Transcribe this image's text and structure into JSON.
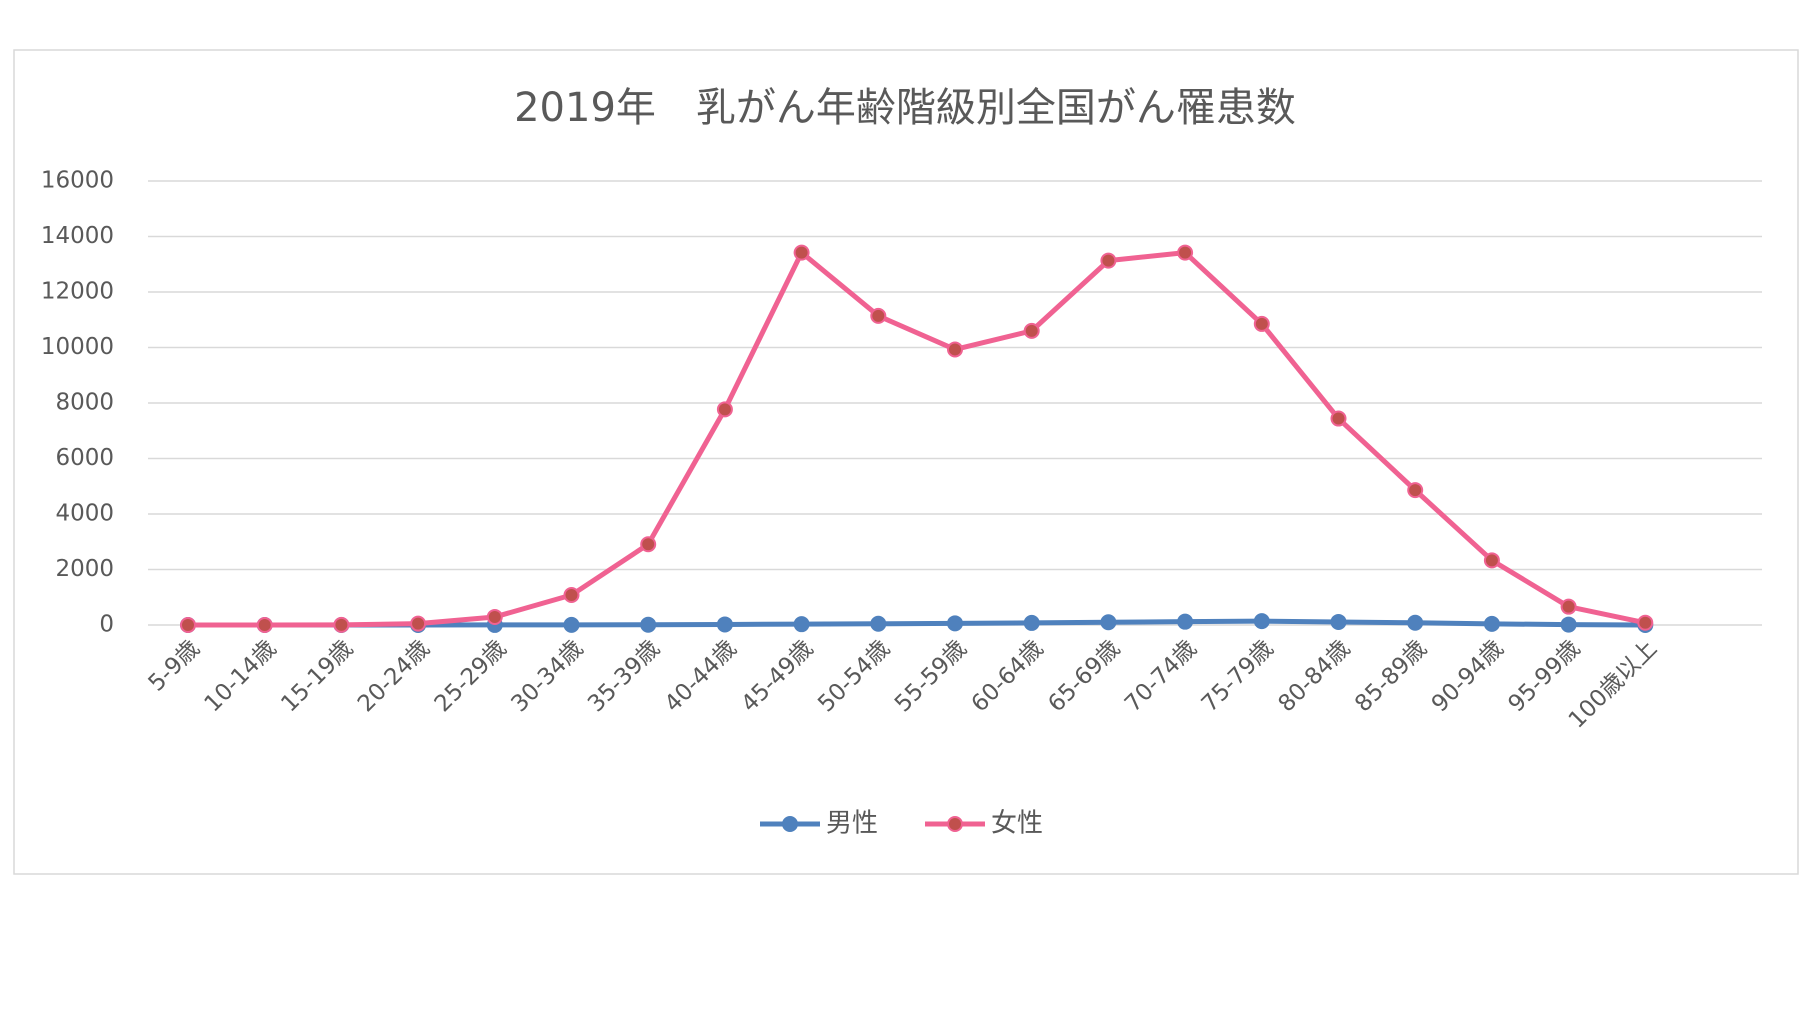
{
  "chart_data": {
    "type": "line",
    "title": "2019年　乳がん年齢階級別全国がん罹患数",
    "categories": [
      "5-9歳",
      "10-14歳",
      "15-19歳",
      "20-24歳",
      "25-29歳",
      "30-34歳",
      "35-39歳",
      "40-44歳",
      "45-49歳",
      "50-54歳",
      "55-59歳",
      "60-64歳",
      "65-69歳",
      "70-74歳",
      "75-79歳",
      "80-84歳",
      "85-89歳",
      "90-94歳",
      "95-99歳",
      "100歳以上"
    ],
    "series": [
      {
        "name": "男性",
        "color": "#4f81bd",
        "values": [
          0,
          0,
          0,
          1,
          3,
          5,
          10,
          20,
          30,
          45,
          60,
          75,
          100,
          120,
          140,
          110,
          80,
          40,
          15,
          2
        ]
      },
      {
        "name": "女性",
        "color": "#f06292",
        "values": [
          0,
          0,
          5,
          50,
          290,
          1080,
          2910,
          7770,
          13420,
          11140,
          9930,
          10600,
          13130,
          13420,
          10850,
          7440,
          4860,
          2330,
          660,
          80
        ]
      }
    ],
    "ylim": [
      0,
      16000
    ],
    "yticks": [
      0,
      2000,
      4000,
      6000,
      8000,
      10000,
      12000,
      14000,
      16000
    ],
    "grid": true,
    "legend": "bottom"
  }
}
